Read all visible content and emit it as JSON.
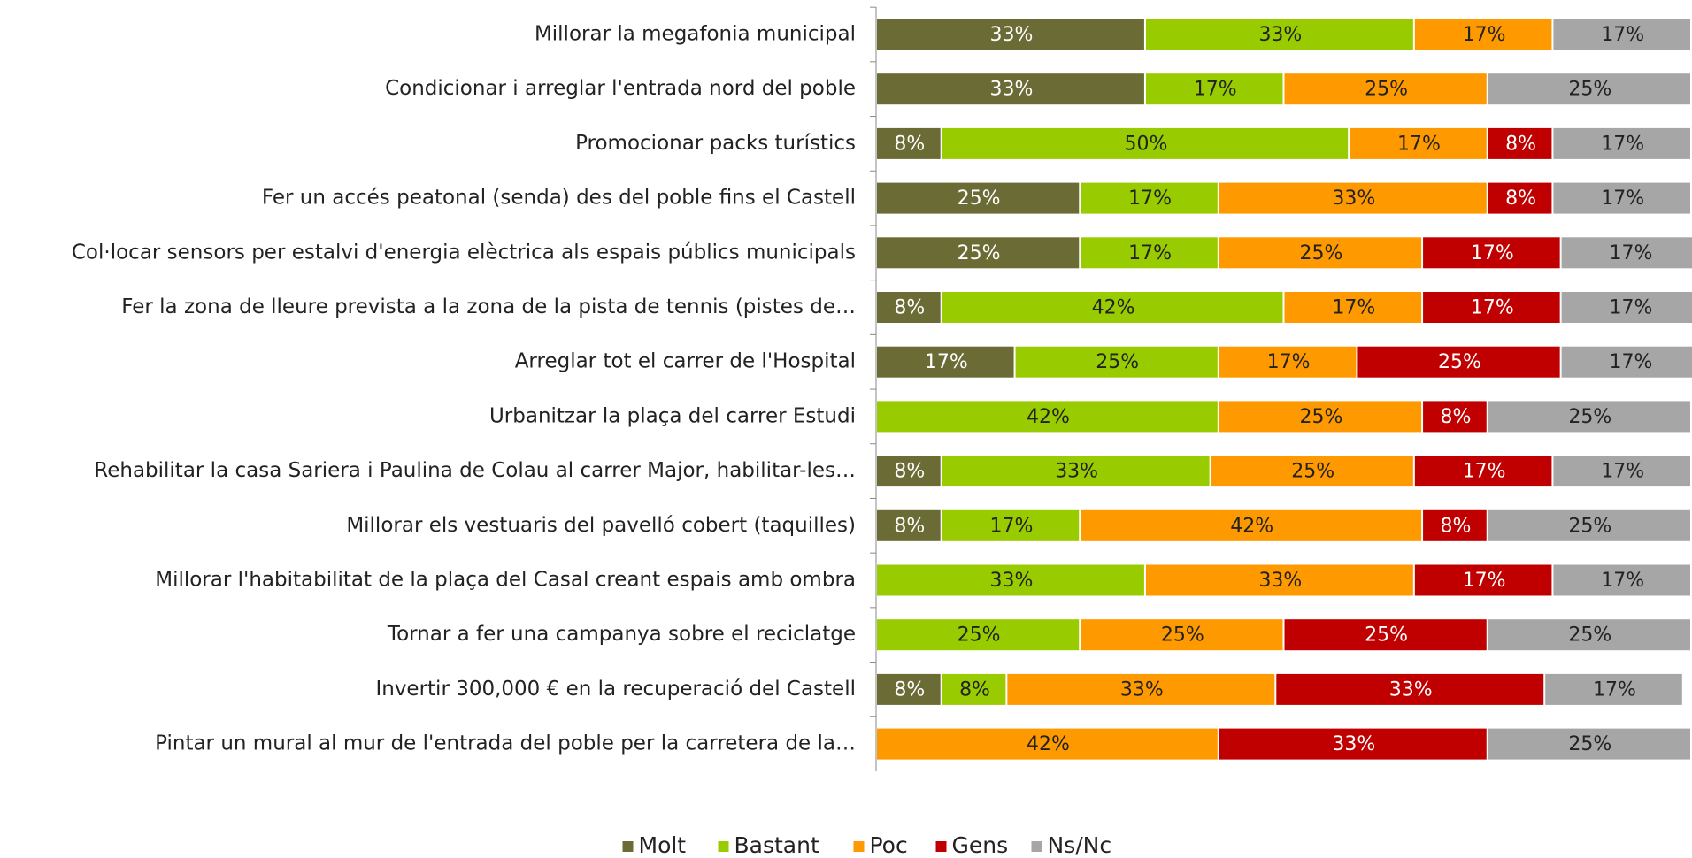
{
  "chart_data": {
    "type": "stacked_bar_horizontal",
    "categories": [
      "Millorar la megafonia municipal",
      "Condicionar i arreglar l'entrada nord del poble",
      "Promocionar packs turístics",
      "Fer un accés peatonal (senda) des del poble fins el Castell",
      "Col·locar sensors per estalvi d'energia elèctrica als espais públics municipals",
      "Fer la zona de lleure prevista a la zona de la pista de tennis (pistes de…",
      "Arreglar tot el carrer de l'Hospital",
      "Urbanitzar la plaça del carrer Estudi",
      "Rehabilitar la casa Sariera i Paulina de Colau al carrer Major, habilitar-les…",
      "Millorar els vestuaris del pavelló cobert (taquilles)",
      "Millorar l'habitabilitat de la plaça del Casal creant espais amb ombra",
      "Tornar a fer una campanya sobre el reciclatge",
      "Invertir 300,000 € en la recuperació del Castell",
      "Pintar un mural al mur de l'entrada del poble per la carretera de la…"
    ],
    "series": [
      {
        "name": "Molt",
        "color": "#6b6b35",
        "values": [
          33,
          33,
          8,
          25,
          25,
          8,
          17,
          null,
          8,
          8,
          null,
          null,
          8,
          null
        ],
        "value_labels": [
          "33%",
          "33%",
          "8%",
          "25%",
          "25%",
          "8%",
          "17%",
          null,
          "8%",
          "8%",
          null,
          null,
          "8%",
          null
        ]
      },
      {
        "name": "Bastant",
        "color": "#99cc00",
        "values": [
          33,
          17,
          50,
          17,
          17,
          42,
          25,
          42,
          33,
          17,
          33,
          25,
          8,
          null
        ],
        "value_labels": [
          "33%",
          "17%",
          "50%",
          "17%",
          "17%",
          "42%",
          "25%",
          "42%",
          "33%",
          "17%",
          "33%",
          "25%",
          "8%",
          null
        ]
      },
      {
        "name": "Poc",
        "color": "#ff9900",
        "values": [
          17,
          25,
          17,
          33,
          25,
          17,
          17,
          25,
          25,
          42,
          33,
          25,
          33,
          42
        ],
        "value_labels": [
          "17%",
          "25%",
          "17%",
          "33%",
          "25%",
          "17%",
          "17%",
          "25%",
          "25%",
          "42%",
          "33%",
          "25%",
          "33%",
          "42%"
        ]
      },
      {
        "name": "Gens",
        "color": "#c00000",
        "values": [
          null,
          null,
          8,
          8,
          17,
          17,
          25,
          8,
          17,
          8,
          17,
          25,
          33,
          33
        ],
        "value_labels": [
          null,
          null,
          "8%",
          "8%",
          "17%",
          "17%",
          "25%",
          "8%",
          "17%",
          "8%",
          "17%",
          "25%",
          "33%",
          "33%"
        ]
      },
      {
        "name": "Ns/Nc",
        "color": "#a6a6a6",
        "values": [
          17,
          25,
          17,
          17,
          17,
          17,
          17,
          25,
          17,
          25,
          17,
          25,
          17,
          25
        ],
        "value_labels": [
          "17%",
          "25%",
          "17%",
          "17%",
          "17%",
          "17%",
          "17%",
          "25%",
          "17%",
          "25%",
          "17%",
          "25%",
          "17%",
          "25%"
        ]
      }
    ],
    "xlim": [
      0,
      100
    ],
    "legend": "bottom"
  }
}
